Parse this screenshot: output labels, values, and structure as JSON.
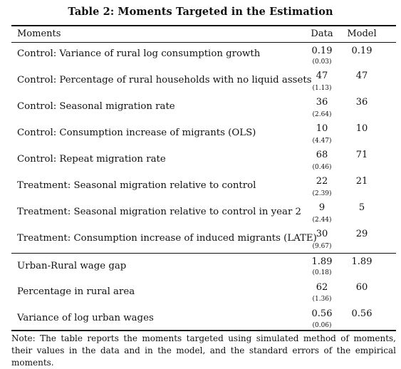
{
  "title": "Table 2: Moments Targeted in the Estimation",
  "headers": {
    "moments": "Moments",
    "data": "Data",
    "model": "Model"
  },
  "rows": [
    {
      "label": "Control: Variance of rural log consumption growth",
      "data": "0.19",
      "se": "(0.03)",
      "model": "0.19"
    },
    {
      "label": "Control: Percentage of rural households with no liquid assets",
      "data": "47",
      "se": "(1.13)",
      "model": "47"
    },
    {
      "label": "Control: Seasonal migration rate",
      "data": "36",
      "se": "(2.64)",
      "model": "36"
    },
    {
      "label": "Control: Consumption increase of migrants (OLS)",
      "data": "10",
      "se": "(4.47)",
      "model": "10"
    },
    {
      "label": "Control: Repeat migration rate",
      "data": "68",
      "se": "(0.46)",
      "model": "71"
    },
    {
      "label": "Treatment: Seasonal migration relative to control",
      "data": "22",
      "se": "(2.39)",
      "model": "21"
    },
    {
      "label": "Treatment: Seasonal migration relative to control in year 2",
      "data": "9",
      "se": "(2.44)",
      "model": "5"
    },
    {
      "label": "Treatment: Consumption increase of induced migrants (LATE)",
      "data": "30",
      "se": "(9.67)",
      "model": "29"
    },
    {
      "label": "Urban-Rural wage gap",
      "data": "1.89",
      "se": "(0.18)",
      "model": "1.89"
    },
    {
      "label": "Percentage in rural area",
      "data": "62",
      "se": "(1.36)",
      "model": "60"
    },
    {
      "label": "Variance of log urban wages",
      "data": "0.56",
      "se": "(0.06)",
      "model": "0.56"
    }
  ],
  "note": "Note: The table reports the moments targeted using simulated method of moments, their values in the data and in the model, and the standard errors of the empirical moments."
}
